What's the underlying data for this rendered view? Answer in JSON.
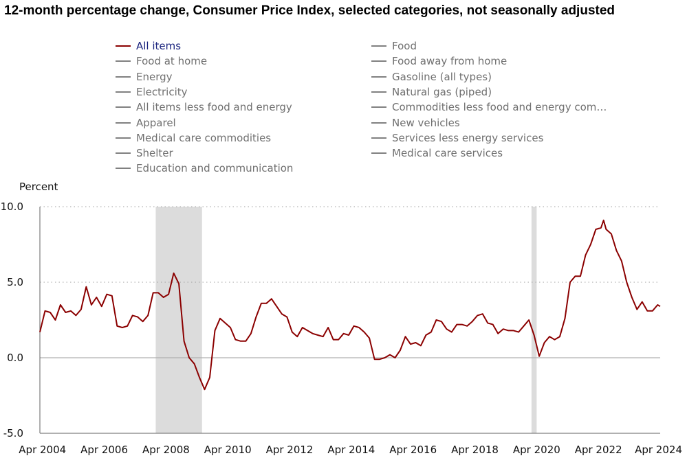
{
  "chart_data": {
    "type": "line",
    "title": "12-month percentage change, Consumer Price Index, selected categories, not seasonally adjusted",
    "ylabel": "Percent",
    "xlabel": "",
    "ylim": [
      -5.0,
      10.0
    ],
    "y_ticks": [
      "10.0",
      "5.0",
      "0.0",
      "-5.0"
    ],
    "y_tick_values": [
      10,
      5,
      0,
      -5
    ],
    "x_ticks": [
      "Apr 2004",
      "Apr 2006",
      "Apr 2008",
      "Apr 2010",
      "Apr 2012",
      "Apr 2014",
      "Apr 2016",
      "Apr 2018",
      "Apr 2020",
      "Apr 2022",
      "Apr 2024"
    ],
    "x_tick_values": [
      "2004-04",
      "2006-04",
      "2008-04",
      "2010-04",
      "2012-04",
      "2014-04",
      "2016-04",
      "2018-04",
      "2020-04",
      "2022-04",
      "2024-04"
    ],
    "xlim": [
      "2004-03",
      "2024-04"
    ],
    "recessions": [
      {
        "start": "2007-12",
        "end": "2009-06"
      },
      {
        "start": "2020-02",
        "end": "2020-04"
      }
    ],
    "grid": "dotted horizontal gridlines at 10.0 and 5.0, solid baseline at 0.0",
    "legend_position": "top",
    "legend": [
      {
        "label": "All items",
        "active": true
      },
      {
        "label": "Food",
        "active": false
      },
      {
        "label": "Food at home",
        "active": false
      },
      {
        "label": "Food away from home",
        "active": false
      },
      {
        "label": "Energy",
        "active": false
      },
      {
        "label": "Gasoline (all types)",
        "active": false
      },
      {
        "label": "Electricity",
        "active": false
      },
      {
        "label": "Natural gas (piped)",
        "active": false
      },
      {
        "label": "All items less food and energy",
        "active": false
      },
      {
        "label": "Commodities less food and energy com…",
        "active": false
      },
      {
        "label": "Apparel",
        "active": false
      },
      {
        "label": "New vehicles",
        "active": false
      },
      {
        "label": "Medical care commodities",
        "active": false
      },
      {
        "label": "Services less energy services",
        "active": false
      },
      {
        "label": "Shelter",
        "active": false
      },
      {
        "label": "Medical care services",
        "active": false
      },
      {
        "label": "Education and communication",
        "active": false
      }
    ],
    "colors": {
      "active_series": "#8b0000",
      "inactive_series": "#808080",
      "recession_shade": "#dcdcdc",
      "active_legend_text": "#1a237e",
      "inactive_legend_text": "#707070"
    },
    "series": [
      {
        "name": "All items",
        "color": "#8b0000",
        "x": [
          "2004-03",
          "2004-05",
          "2004-07",
          "2004-09",
          "2004-11",
          "2005-01",
          "2005-03",
          "2005-05",
          "2005-07",
          "2005-09",
          "2005-11",
          "2006-01",
          "2006-03",
          "2006-05",
          "2006-07",
          "2006-09",
          "2006-11",
          "2007-01",
          "2007-03",
          "2007-05",
          "2007-07",
          "2007-09",
          "2007-11",
          "2008-01",
          "2008-03",
          "2008-05",
          "2008-07",
          "2008-09",
          "2008-11",
          "2009-01",
          "2009-03",
          "2009-05",
          "2009-07",
          "2009-09",
          "2009-11",
          "2010-01",
          "2010-03",
          "2010-05",
          "2010-07",
          "2010-09",
          "2010-11",
          "2011-01",
          "2011-03",
          "2011-05",
          "2011-07",
          "2011-09",
          "2011-11",
          "2012-01",
          "2012-03",
          "2012-05",
          "2012-07",
          "2012-09",
          "2012-11",
          "2013-01",
          "2013-03",
          "2013-05",
          "2013-07",
          "2013-09",
          "2013-11",
          "2014-01",
          "2014-03",
          "2014-05",
          "2014-07",
          "2014-09",
          "2014-11",
          "2015-01",
          "2015-03",
          "2015-05",
          "2015-07",
          "2015-09",
          "2015-11",
          "2016-01",
          "2016-03",
          "2016-05",
          "2016-07",
          "2016-09",
          "2016-11",
          "2017-01",
          "2017-03",
          "2017-05",
          "2017-07",
          "2017-09",
          "2017-11",
          "2018-01",
          "2018-03",
          "2018-05",
          "2018-07",
          "2018-09",
          "2018-11",
          "2019-01",
          "2019-03",
          "2019-05",
          "2019-07",
          "2019-09",
          "2019-11",
          "2020-01",
          "2020-03",
          "2020-05",
          "2020-07",
          "2020-09",
          "2020-11",
          "2021-01",
          "2021-03",
          "2021-05",
          "2021-07",
          "2021-09",
          "2021-11",
          "2022-01",
          "2022-03",
          "2022-05",
          "2022-06",
          "2022-07",
          "2022-09",
          "2022-11",
          "2023-01",
          "2023-03",
          "2023-05",
          "2023-07",
          "2023-09",
          "2023-11",
          "2024-01",
          "2024-03",
          "2024-04"
        ],
        "y": [
          1.7,
          3.1,
          3.0,
          2.5,
          3.5,
          3.0,
          3.1,
          2.8,
          3.2,
          4.7,
          3.5,
          4.0,
          3.4,
          4.2,
          4.1,
          2.1,
          2.0,
          2.1,
          2.8,
          2.7,
          2.4,
          2.8,
          4.3,
          4.3,
          4.0,
          4.2,
          5.6,
          4.9,
          1.1,
          0.0,
          -0.4,
          -1.3,
          -2.1,
          -1.3,
          1.8,
          2.6,
          2.3,
          2.0,
          1.2,
          1.1,
          1.1,
          1.6,
          2.7,
          3.6,
          3.6,
          3.9,
          3.4,
          2.9,
          2.7,
          1.7,
          1.4,
          2.0,
          1.8,
          1.6,
          1.5,
          1.4,
          2.0,
          1.2,
          1.2,
          1.6,
          1.5,
          2.1,
          2.0,
          1.7,
          1.3,
          -0.1,
          -0.1,
          0.0,
          0.2,
          0.0,
          0.5,
          1.4,
          0.9,
          1.0,
          0.8,
          1.5,
          1.7,
          2.5,
          2.4,
          1.9,
          1.7,
          2.2,
          2.2,
          2.1,
          2.4,
          2.8,
          2.9,
          2.3,
          2.2,
          1.6,
          1.9,
          1.8,
          1.8,
          1.7,
          2.1,
          2.5,
          1.5,
          0.1,
          1.0,
          1.4,
          1.2,
          1.4,
          2.6,
          5.0,
          5.4,
          5.4,
          6.8,
          7.5,
          8.5,
          8.6,
          9.1,
          8.5,
          8.2,
          7.1,
          6.4,
          5.0,
          4.0,
          3.2,
          3.7,
          3.1,
          3.1,
          3.5,
          3.4
        ]
      }
    ]
  }
}
